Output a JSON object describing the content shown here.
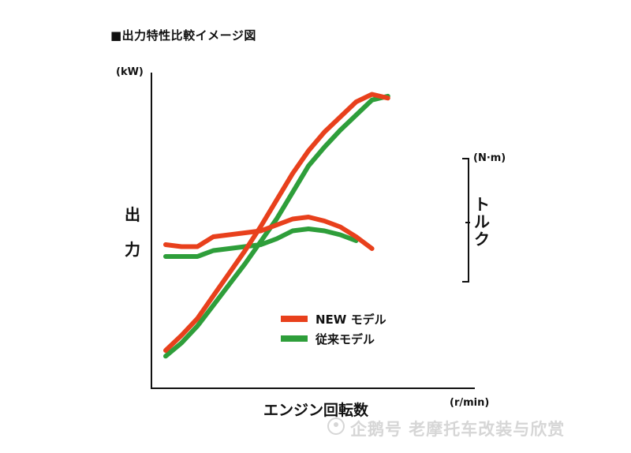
{
  "chart_data": {
    "type": "line",
    "title": "■出力特性比較イメージ図",
    "xlabel": "エンジン回転数",
    "x_unit": "(r/min)",
    "ylabel_left": "出力",
    "y_unit_left": "(kW)",
    "ylabel_right": "トルク",
    "y_unit_right": "(N·m)",
    "grid": false,
    "legend_position": "center-bottom",
    "x": [
      0,
      5,
      10,
      15,
      20,
      25,
      30,
      35,
      40,
      45,
      50,
      55,
      60,
      65,
      70,
      75,
      80
    ],
    "series": [
      {
        "name": "NEW モデル",
        "color": "#e8401c",
        "metric": "power",
        "values": [
          10,
          18,
          27,
          39,
          51,
          63,
          76,
          90,
          104,
          116,
          126,
          134,
          142,
          146,
          144,
          null,
          null
        ]
      },
      {
        "name": "従来モデル",
        "color": "#2e9e3a",
        "metric": "power",
        "values": [
          7,
          14,
          23,
          34,
          45,
          56,
          68,
          80,
          94,
          108,
          118,
          127,
          135,
          143,
          145,
          null,
          null
        ]
      },
      {
        "name": "NEW モデル",
        "color": "#e8401c",
        "metric": "torque",
        "values": [
          82,
          81,
          81,
          86,
          87,
          88,
          89,
          92,
          95,
          96,
          94,
          91,
          86,
          80,
          null,
          null,
          null
        ]
      },
      {
        "name": "従来モデル",
        "color": "#2e9e3a",
        "metric": "torque",
        "values": [
          76,
          76,
          76,
          79,
          80,
          81,
          82,
          85,
          89,
          90,
          89,
          87,
          84,
          null,
          null,
          null,
          null
        ]
      }
    ],
    "legend": [
      {
        "label": "NEW モデル",
        "color": "#e8401c"
      },
      {
        "label": "従来モデル",
        "color": "#2e9e3a"
      }
    ]
  },
  "watermark": "企鹅号 老摩托车改装与欣赏"
}
